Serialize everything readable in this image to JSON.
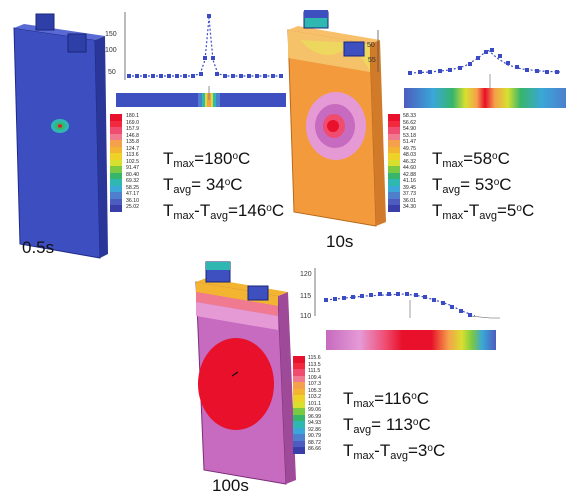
{
  "panels": [
    {
      "time": "0.5s",
      "tmax": "180",
      "tavg": "34",
      "tdiff": "146",
      "profile_ticks": [
        "150",
        "100",
        "50"
      ],
      "legend": [
        "180.1",
        "169.0",
        "157.9",
        "146.8",
        "135.8",
        "124.7",
        "113.6",
        "102.5",
        "91.47",
        "80.40",
        "69.32",
        "58.25",
        "47.17",
        "36.10",
        "25.02"
      ]
    },
    {
      "time": "10s",
      "tmax": "58",
      "tavg": "53",
      "tdiff": "5",
      "profile_ticks": [
        "50",
        "55"
      ],
      "legend": [
        "58.33",
        "56.62",
        "54.90",
        "53.18",
        "51.47",
        "49.75",
        "48.03",
        "46.32",
        "44.60",
        "42.88",
        "41.16",
        "39.45",
        "37.73",
        "36.01",
        "34.30"
      ]
    },
    {
      "time": "100s",
      "tmax": "116",
      "tavg": "113",
      "tdiff": "3",
      "profile_ticks": [
        "120",
        "115",
        "110"
      ],
      "legend": [
        "115.6",
        "113.5",
        "111.5",
        "109.4",
        "107.3",
        "105.3",
        "103.2",
        "101.1",
        "99.06",
        "96.99",
        "94.93",
        "92.86",
        "90.79",
        "88.72",
        "86.66"
      ]
    }
  ],
  "labels": {
    "max": "max",
    "avg": "avg",
    "unit": "C",
    "deg": "o",
    "T": "T",
    "eq": "=",
    "minus": "-"
  },
  "colors": {
    "scale": [
      "#e8102a",
      "#f2293d",
      "#f04c70",
      "#f07a90",
      "#f5a04a",
      "#f3b431",
      "#efd227",
      "#d8e02f",
      "#7ac943",
      "#37b56b",
      "#2fb8b1",
      "#3aa7d8",
      "#4d7fcc",
      "#4d5cbf",
      "#3a3ea8"
    ],
    "cell_blue": "#3e4fbf",
    "cell_orange": "#f39a3d",
    "cell_magenta": "#c66bbf",
    "profile_blue": "#3b4bc4"
  }
}
